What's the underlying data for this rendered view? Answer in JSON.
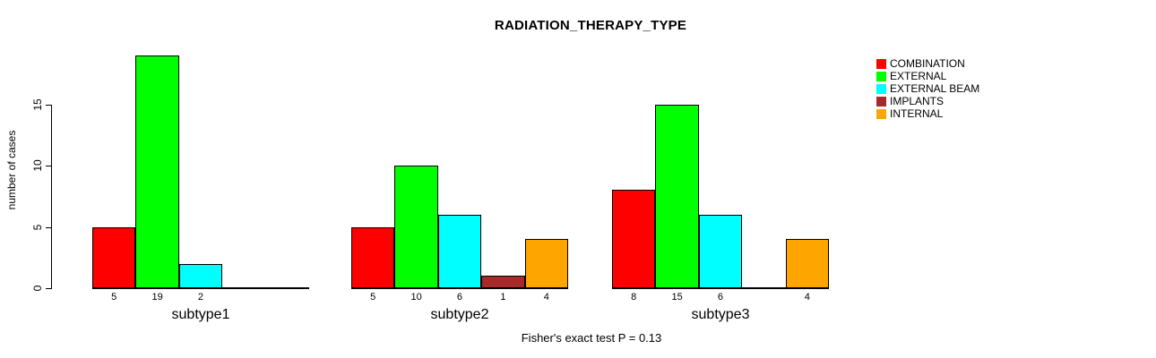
{
  "chart_data": {
    "type": "bar",
    "title": "RADIATION_THERAPY_TYPE",
    "ylabel": "number of cases",
    "xlabel": "",
    "ylim": [
      0,
      19
    ],
    "yticks": [
      0,
      5,
      10,
      15
    ],
    "grid": false,
    "legend_position": "right",
    "categories": [
      "subtype1",
      "subtype2",
      "subtype3"
    ],
    "series": [
      {
        "name": "COMBINATION",
        "color": "#ff0000",
        "values": [
          5,
          5,
          8
        ]
      },
      {
        "name": "EXTERNAL",
        "color": "#00ff00",
        "values": [
          19,
          10,
          15
        ]
      },
      {
        "name": "EXTERNAL BEAM",
        "color": "#00ffff",
        "values": [
          2,
          6,
          6
        ]
      },
      {
        "name": "IMPLANTS",
        "color": "#a52a2a",
        "values": [
          0,
          1,
          0
        ]
      },
      {
        "name": "INTERNAL",
        "color": "#ffa500",
        "values": [
          0,
          4,
          4
        ]
      }
    ],
    "bar_value_labels_shown_for_nonzero_only": true,
    "footnote": "Fisher's exact test P = 0.13"
  }
}
